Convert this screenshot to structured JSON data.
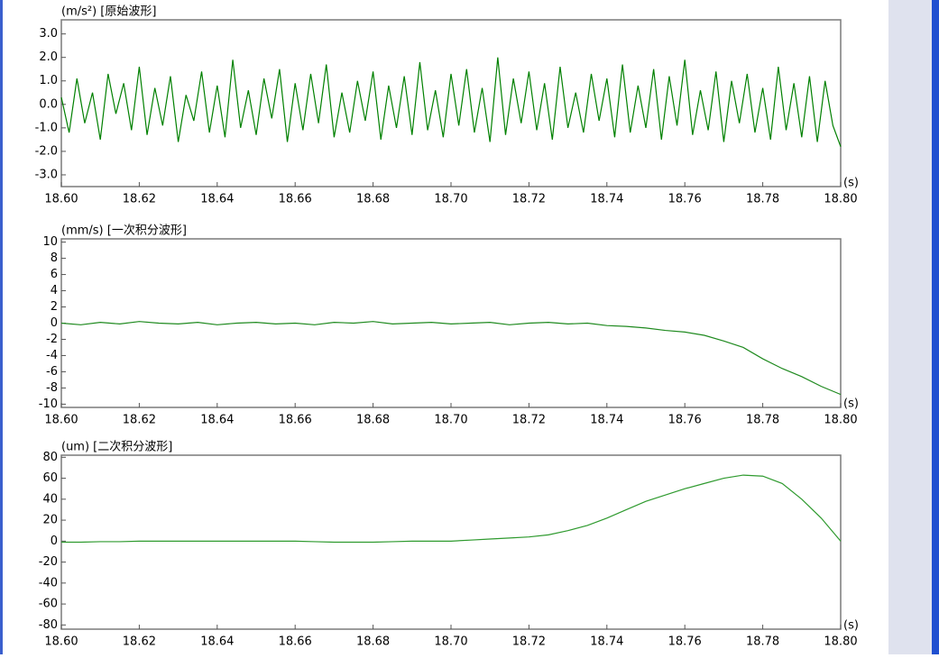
{
  "chart_data": [
    {
      "type": "line",
      "title": "(m/s²) [原始波形]",
      "xlabel": "(s)",
      "x": [
        18.6,
        18.602,
        18.604,
        18.606,
        18.608,
        18.61,
        18.612,
        18.614,
        18.616,
        18.618,
        18.62,
        18.622,
        18.624,
        18.626,
        18.628,
        18.63,
        18.632,
        18.634,
        18.636,
        18.638,
        18.64,
        18.642,
        18.644,
        18.646,
        18.648,
        18.65,
        18.652,
        18.654,
        18.656,
        18.658,
        18.66,
        18.662,
        18.664,
        18.666,
        18.668,
        18.67,
        18.672,
        18.674,
        18.676,
        18.678,
        18.68,
        18.682,
        18.684,
        18.686,
        18.688,
        18.69,
        18.692,
        18.694,
        18.696,
        18.698,
        18.7,
        18.702,
        18.704,
        18.706,
        18.708,
        18.71,
        18.712,
        18.714,
        18.716,
        18.718,
        18.72,
        18.722,
        18.724,
        18.726,
        18.728,
        18.73,
        18.732,
        18.734,
        18.736,
        18.738,
        18.74,
        18.742,
        18.744,
        18.746,
        18.748,
        18.75,
        18.752,
        18.754,
        18.756,
        18.758,
        18.76,
        18.762,
        18.764,
        18.766,
        18.768,
        18.77,
        18.772,
        18.774,
        18.776,
        18.778,
        18.78,
        18.782,
        18.784,
        18.786,
        18.788,
        18.79,
        18.792,
        18.794,
        18.796,
        18.798,
        18.8
      ],
      "series": [
        {
          "color": "#008000",
          "values": [
            0.3,
            -1.2,
            1.1,
            -0.8,
            0.5,
            -1.5,
            1.3,
            -0.4,
            0.9,
            -1.1,
            1.6,
            -1.3,
            0.7,
            -0.9,
            1.2,
            -1.6,
            0.4,
            -0.7,
            1.4,
            -1.2,
            0.8,
            -1.4,
            1.9,
            -1.0,
            0.6,
            -1.3,
            1.1,
            -0.6,
            1.5,
            -1.6,
            0.9,
            -1.1,
            1.3,
            -0.8,
            1.7,
            -1.4,
            0.5,
            -1.2,
            1.0,
            -0.7,
            1.4,
            -1.5,
            0.8,
            -1.0,
            1.2,
            -1.3,
            1.8,
            -1.1,
            0.6,
            -1.4,
            1.3,
            -0.9,
            1.5,
            -1.2,
            0.7,
            -1.6,
            2.0,
            -1.3,
            1.1,
            -0.8,
            1.4,
            -1.1,
            0.9,
            -1.5,
            1.6,
            -1.0,
            0.5,
            -1.2,
            1.3,
            -0.7,
            1.1,
            -1.4,
            1.7,
            -1.2,
            0.8,
            -1.0,
            1.5,
            -1.5,
            1.2,
            -0.9,
            1.9,
            -1.3,
            0.6,
            -1.1,
            1.4,
            -1.6,
            1.0,
            -0.8,
            1.3,
            -1.2,
            0.7,
            -1.5,
            1.6,
            -1.1,
            0.9,
            -1.4,
            1.2,
            -1.6,
            1.0,
            -0.9,
            -1.8
          ]
        }
      ],
      "xlim": [
        18.6,
        18.8
      ],
      "xticks": [
        {
          "value": 18.6,
          "label": "18.60"
        },
        {
          "value": 18.62,
          "label": "18.62"
        },
        {
          "value": 18.64,
          "label": "18.64"
        },
        {
          "value": 18.66,
          "label": "18.66"
        },
        {
          "value": 18.68,
          "label": "18.68"
        },
        {
          "value": 18.7,
          "label": "18.70"
        },
        {
          "value": 18.72,
          "label": "18.72"
        },
        {
          "value": 18.74,
          "label": "18.74"
        },
        {
          "value": 18.76,
          "label": "18.76"
        },
        {
          "value": 18.78,
          "label": "18.78"
        },
        {
          "value": 18.8,
          "label": "18.80"
        }
      ],
      "ylim": [
        -3.5,
        3.6
      ],
      "yticks": [
        {
          "value": 3,
          "label": "3.0"
        },
        {
          "value": 2,
          "label": "2.0"
        },
        {
          "value": 1,
          "label": "1.0"
        },
        {
          "value": 0,
          "label": "0.0"
        },
        {
          "value": -1,
          "label": "-1.0"
        },
        {
          "value": -2,
          "label": "-2.0"
        },
        {
          "value": -3,
          "label": "-3.0"
        }
      ],
      "grid": false
    },
    {
      "type": "line",
      "title": "(mm/s) [一次积分波形]",
      "xlabel": "(s)",
      "x": [
        18.6,
        18.605,
        18.61,
        18.615,
        18.62,
        18.625,
        18.63,
        18.635,
        18.64,
        18.645,
        18.65,
        18.655,
        18.66,
        18.665,
        18.67,
        18.675,
        18.68,
        18.685,
        18.69,
        18.695,
        18.7,
        18.705,
        18.71,
        18.715,
        18.72,
        18.725,
        18.73,
        18.735,
        18.74,
        18.745,
        18.75,
        18.755,
        18.76,
        18.765,
        18.77,
        18.775,
        18.78,
        18.785,
        18.79,
        18.795,
        18.8
      ],
      "series": [
        {
          "color": "#1f8a1f",
          "values": [
            0,
            -0.2,
            0.1,
            -0.1,
            0.2,
            0,
            -0.1,
            0.1,
            -0.2,
            0,
            0.1,
            -0.1,
            0,
            -0.2,
            0.1,
            0,
            0.2,
            -0.1,
            0,
            0.1,
            -0.1,
            0,
            0.1,
            -0.2,
            0,
            0.1,
            -0.1,
            0,
            -0.3,
            -0.4,
            -0.6,
            -0.9,
            -1.1,
            -1.5,
            -2.2,
            -3.0,
            -4.4,
            -5.6,
            -6.6,
            -7.8,
            -8.8
          ]
        }
      ],
      "xlim": [
        18.6,
        18.8
      ],
      "xticks": [
        {
          "value": 18.6,
          "label": "18.60"
        },
        {
          "value": 18.62,
          "label": "18.62"
        },
        {
          "value": 18.64,
          "label": "18.64"
        },
        {
          "value": 18.66,
          "label": "18.66"
        },
        {
          "value": 18.68,
          "label": "18.68"
        },
        {
          "value": 18.7,
          "label": "18.70"
        },
        {
          "value": 18.72,
          "label": "18.72"
        },
        {
          "value": 18.74,
          "label": "18.74"
        },
        {
          "value": 18.76,
          "label": "18.76"
        },
        {
          "value": 18.78,
          "label": "18.78"
        },
        {
          "value": 18.8,
          "label": "18.80"
        }
      ],
      "ylim": [
        -10.4,
        10.4
      ],
      "yticks": [
        10,
        8,
        6,
        4,
        2,
        0,
        -2,
        -4,
        -6,
        -8,
        -10
      ],
      "grid": false
    },
    {
      "type": "line",
      "title": "(um) [二次积分波形]",
      "xlabel": "(s)",
      "x": [
        18.6,
        18.605,
        18.61,
        18.615,
        18.62,
        18.625,
        18.63,
        18.635,
        18.64,
        18.645,
        18.65,
        18.655,
        18.66,
        18.665,
        18.67,
        18.675,
        18.68,
        18.685,
        18.69,
        18.695,
        18.7,
        18.705,
        18.71,
        18.715,
        18.72,
        18.725,
        18.73,
        18.735,
        18.74,
        18.745,
        18.75,
        18.755,
        18.76,
        18.765,
        18.77,
        18.775,
        18.78,
        18.785,
        18.79,
        18.795,
        18.8
      ],
      "series": [
        {
          "color": "#2e9a2e",
          "values": [
            -1,
            -1,
            -0.5,
            -0.5,
            0,
            0,
            0,
            0,
            0,
            0,
            0,
            0,
            0,
            -0.5,
            -1,
            -1,
            -1,
            -0.5,
            0,
            0,
            0,
            1,
            2,
            3,
            4,
            6,
            10,
            15,
            22,
            30,
            38,
            44,
            50,
            55,
            60,
            63,
            62,
            55,
            40,
            22,
            0
          ]
        }
      ],
      "xlim": [
        18.6,
        18.8
      ],
      "xticks": [
        {
          "value": 18.6,
          "label": "18.60"
        },
        {
          "value": 18.62,
          "label": "18.62"
        },
        {
          "value": 18.64,
          "label": "18.64"
        },
        {
          "value": 18.66,
          "label": "18.66"
        },
        {
          "value": 18.68,
          "label": "18.68"
        },
        {
          "value": 18.7,
          "label": "18.70"
        },
        {
          "value": 18.72,
          "label": "18.72"
        },
        {
          "value": 18.74,
          "label": "18.74"
        },
        {
          "value": 18.76,
          "label": "18.76"
        },
        {
          "value": 18.78,
          "label": "18.78"
        },
        {
          "value": 18.8,
          "label": "18.80"
        }
      ],
      "ylim": [
        -84,
        82
      ],
      "yticks": [
        80,
        60,
        40,
        20,
        0,
        -20,
        -40,
        -60,
        -80
      ],
      "grid": false
    }
  ]
}
